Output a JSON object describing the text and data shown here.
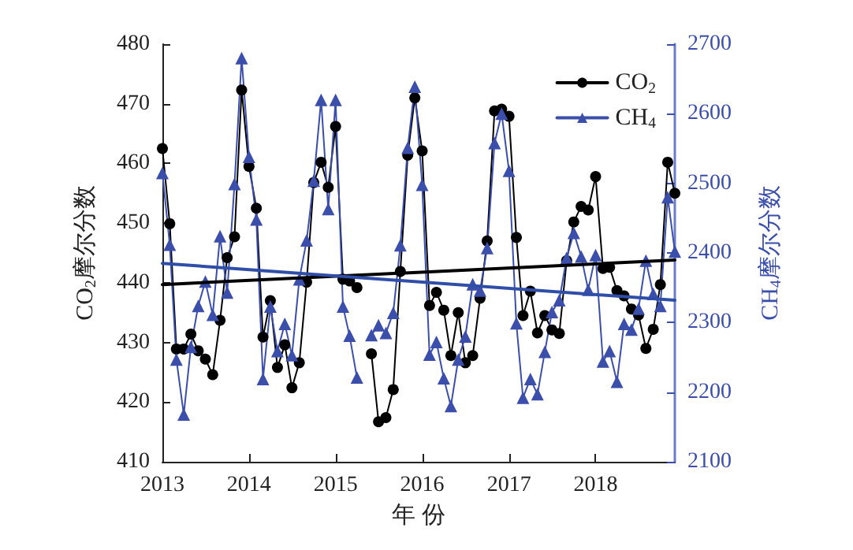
{
  "chart_data": {
    "type": "line",
    "xlabel": "年 份",
    "ylabel": "CO$_{2}$摩尔分数",
    "y2label": "CH$_{4}$摩尔分数",
    "x": [
      "2013-01",
      "2013-02",
      "2013-03",
      "2013-04",
      "2013-05",
      "2013-06",
      "2013-07",
      "2013-08",
      "2013-09",
      "2013-10",
      "2013-11",
      "2013-12",
      "2014-01",
      "2014-02",
      "2014-03",
      "2014-04",
      "2014-05",
      "2014-06",
      "2014-07",
      "2014-08",
      "2014-09",
      "2014-10",
      "2014-11",
      "2014-12",
      "2015-01",
      "2015-02",
      "2015-03",
      "2015-04",
      "2015-05",
      "2015-06",
      "2015-07",
      "2015-08",
      "2015-09",
      "2015-10",
      "2015-11",
      "2015-12",
      "2016-01",
      "2016-02",
      "2016-03",
      "2016-04",
      "2016-05",
      "2016-06",
      "2016-07",
      "2016-08",
      "2016-09",
      "2016-10",
      "2016-11",
      "2016-12",
      "2017-01",
      "2017-02",
      "2017-03",
      "2017-04",
      "2017-05",
      "2017-06",
      "2017-07",
      "2017-08",
      "2017-09",
      "2017-10",
      "2017-11",
      "2017-12",
      "2018-01",
      "2018-02",
      "2018-03",
      "2018-04",
      "2018-05",
      "2018-06",
      "2018-07",
      "2018-08",
      "2018-09",
      "2018-10",
      "2018-11",
      "2018-12"
    ],
    "series": [
      {
        "name": "CO$_{2}$",
        "color": "#000000",
        "marker": "circle",
        "values": [
          462.5,
          449.9,
          428.9,
          428.9,
          431.4,
          428.6,
          427.2,
          424.6,
          433.7,
          444.2,
          447.7,
          472.3,
          459.5,
          452.5,
          430.9,
          437,
          425.8,
          429.6,
          422.4,
          426.6,
          440.1,
          456.8,
          460.2,
          456,
          466.2,
          440.6,
          440.3,
          439.2,
          null,
          428.1,
          416.7,
          417.4,
          422.1,
          441.9,
          461.4,
          471,
          462.1,
          436.2,
          438.4,
          435.4,
          427.8,
          435,
          426.6,
          427.8,
          437.4,
          447,
          468.8,
          469.1,
          467.9,
          447.6,
          434.5,
          438.6,
          431.6,
          434.5,
          432.1,
          431.5,
          443.7,
          450.2,
          452.8,
          452.2,
          457.8,
          442.4,
          442.6,
          438.7,
          437.8,
          435.6,
          434.6,
          429,
          432.2,
          439.7,
          460.2,
          455
        ]
      },
      {
        "name": "CH$_{4}$",
        "color": "#3a4eaa",
        "marker": "triangle",
        "axis": "y2",
        "values": [
          2515,
          2412,
          2247,
          2168,
          2265,
          2324,
          2359,
          2311,
          2424,
          2343,
          2499,
          2680,
          2538,
          2448,
          2219,
          2323,
          2259,
          2298,
          2253,
          2362,
          2418,
          2504,
          2620,
          2463,
          2620,
          2323,
          2281,
          2221,
          null,
          2282,
          2296,
          2285,
          2314,
          2411,
          2551,
          2639,
          2498,
          2254,
          2272,
          2220,
          2180,
          2247,
          2280,
          2355,
          2346,
          2407,
          2558,
          2600,
          2518,
          2299,
          2192,
          2219,
          2197,
          2258,
          2315,
          2332,
          2393,
          2429,
          2395,
          2347,
          2397,
          2244,
          2259,
          2215,
          2298,
          2290,
          2320,
          2389,
          2341,
          2324,
          2480,
          2402
        ]
      },
      {
        "type": "line",
        "color": "#000000",
        "marker": "none",
        "x": [
          "2013-01",
          "2018-12"
        ],
        "values": [
          439.7,
          443.8
        ]
      },
      {
        "type": "line",
        "color": "#2f4ea8",
        "marker": "none",
        "axis": "y2",
        "x": [
          "2013-01",
          "2018-12"
        ],
        "values": [
          2385,
          2332
        ]
      }
    ],
    "xlim": [
      "2013-01",
      "2018-12"
    ],
    "xticks": [
      "2013",
      "2014",
      "2015",
      "2016",
      "2017",
      "2018"
    ],
    "ylim": [
      410,
      480
    ],
    "yticks": [
      410,
      420,
      430,
      440,
      450,
      460,
      470,
      480
    ],
    "y2lim": [
      2100,
      2700
    ],
    "y2ticks": [
      2100,
      2200,
      2300,
      2400,
      2500,
      2600,
      2700
    ],
    "grid": false,
    "legend": "top right",
    "line_style": "solid"
  }
}
